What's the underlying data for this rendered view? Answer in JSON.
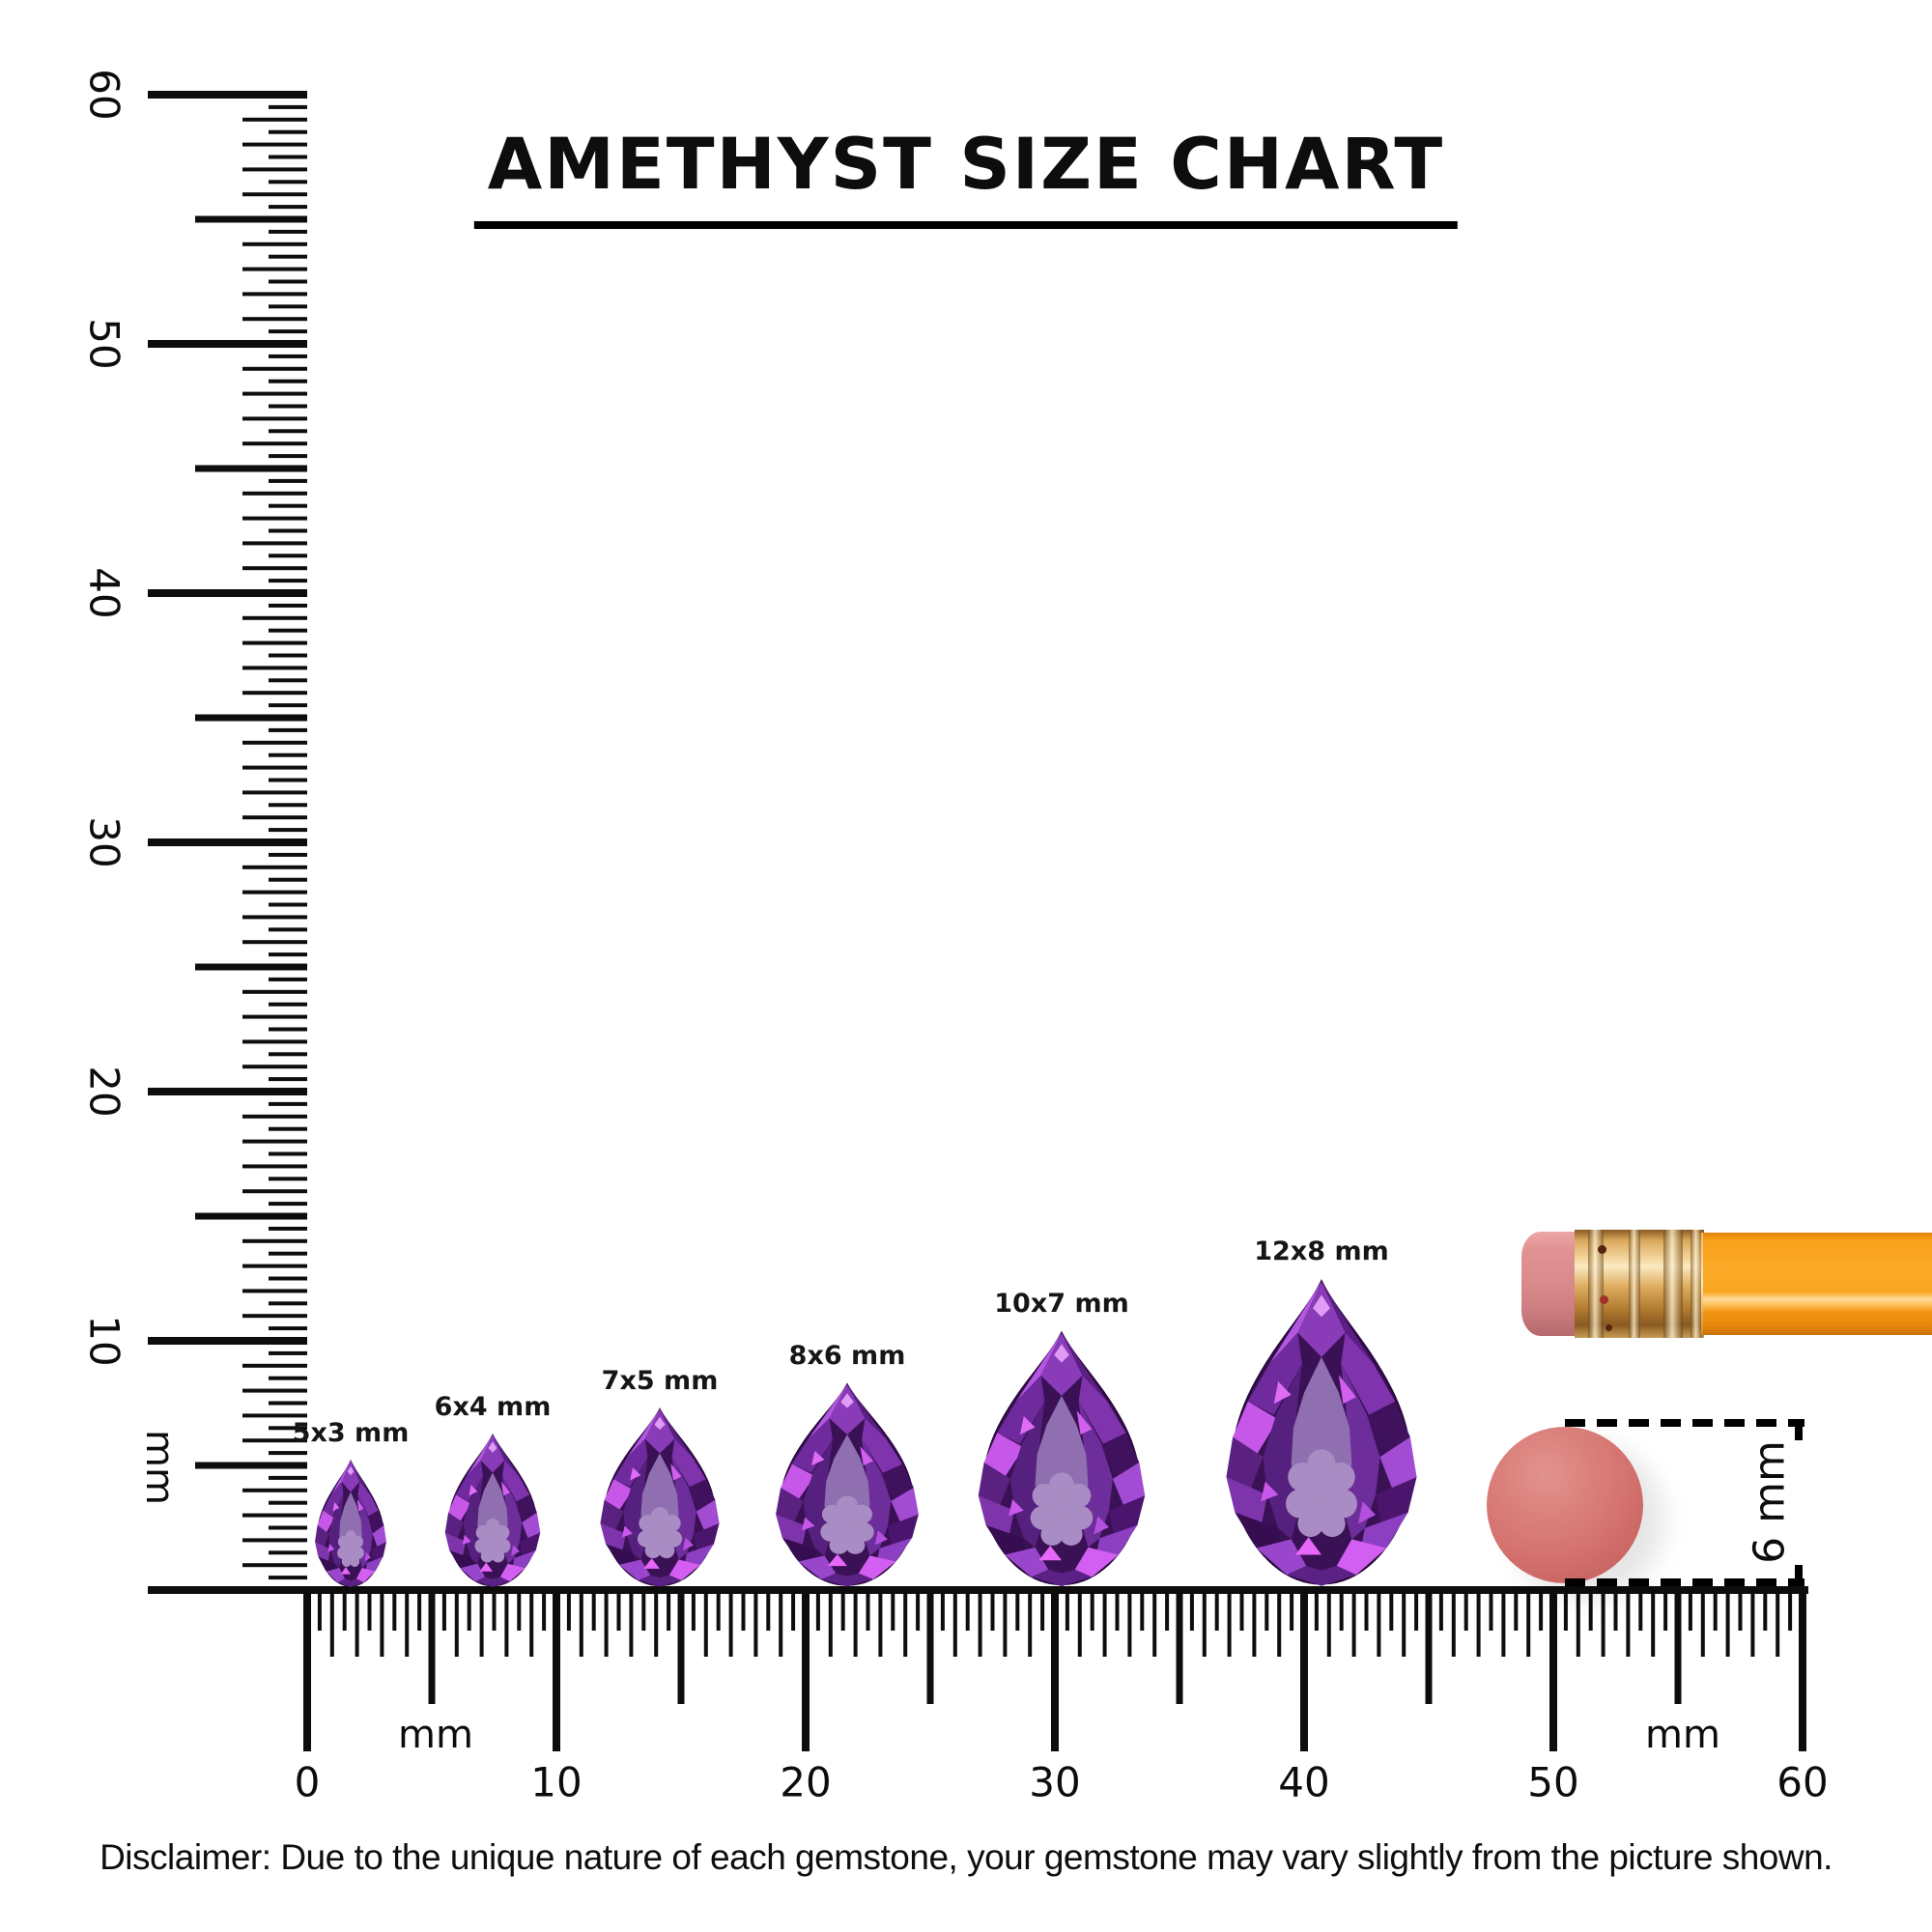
{
  "title": {
    "text": "AMETHYST SIZE CHART"
  },
  "vertical_ruler": {
    "unit_label": "mm",
    "tick_labels": [
      "10",
      "20",
      "30",
      "40",
      "50",
      "60"
    ],
    "range_mm": [
      0,
      60
    ]
  },
  "horizontal_ruler": {
    "unit_label_left": "mm",
    "unit_label_right": "mm",
    "tick_labels": [
      "0",
      "10",
      "20",
      "30",
      "40",
      "50",
      "60"
    ],
    "range_mm": [
      0,
      60
    ]
  },
  "gems": [
    {
      "label": "5x3 mm",
      "length_mm": 5,
      "width_mm": 3
    },
    {
      "label": "6x4 mm",
      "length_mm": 6,
      "width_mm": 4
    },
    {
      "label": "7x5 mm",
      "length_mm": 7,
      "width_mm": 5
    },
    {
      "label": "8x6 mm",
      "length_mm": 8,
      "width_mm": 6
    },
    {
      "label": "10x7 mm",
      "length_mm": 10,
      "width_mm": 7
    },
    {
      "label": "12x8 mm",
      "length_mm": 12,
      "width_mm": 8
    }
  ],
  "reference": {
    "dimension_label": "6 mm",
    "object": "pencil-eraser"
  },
  "disclaimer": "Disclaimer: Due to the unique nature of each gemstone, your gemstone may vary slightly from the picture shown.",
  "colors": {
    "ink": "#0d0d0d",
    "amethyst_dark": "#3b1156",
    "amethyst_primary": "#7f33ad",
    "amethyst_bright": "#c957e8",
    "amethyst_table": "#8f6fb0",
    "eraser_pink": "#d98b8c",
    "ferrule_gold": "#d9a95e",
    "pencil_orange": "#f9a01b",
    "reference_red": "#cd6a66"
  }
}
